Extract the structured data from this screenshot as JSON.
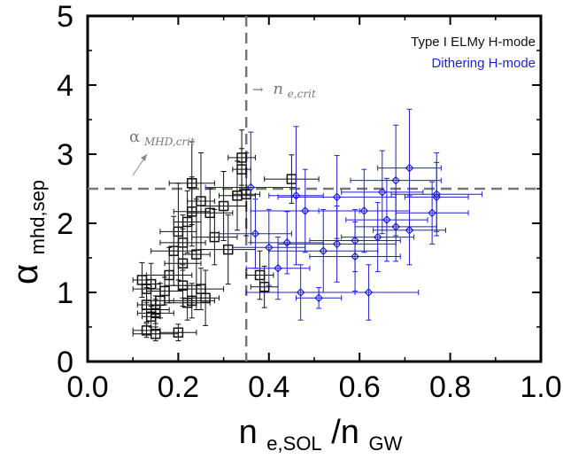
{
  "colors": {
    "type_i": "#111111",
    "dithering": "#1f1fd6",
    "threshold": "#777777",
    "annotation": "#7a7a7a"
  },
  "chart_data": {
    "type": "scatter",
    "title": "",
    "xlabel": {
      "main": "n",
      "sub1": "e,SOL",
      "slash": "/n",
      "sub2": "GW"
    },
    "ylabel": {
      "main": "α",
      "sub": "mhd,sep"
    },
    "xlim": [
      0.0,
      1.0
    ],
    "ylim": [
      0,
      5
    ],
    "x_ticks": [
      "0.0",
      "0.2",
      "0.4",
      "0.6",
      "0.8",
      "1.0"
    ],
    "y_ticks": [
      "0",
      "1",
      "2",
      "3",
      "4",
      "5"
    ],
    "grid": false,
    "legend_position": "top-right",
    "thresholds": {
      "x": 0.35,
      "y": 2.5
    },
    "annotations": {
      "ne_crit": {
        "arrow": "→",
        "main": "n",
        "sub": "e,crit"
      },
      "alpha_crit": {
        "main": "α",
        "sub": "MHD,crit"
      }
    },
    "series": [
      {
        "name": "Type I ELMy H-mode",
        "marker": "square",
        "points": [
          {
            "x": 0.12,
            "y": 1.18,
            "xerr": 0.02,
            "yerr": 0.25
          },
          {
            "x": 0.13,
            "y": 1.05,
            "xerr": 0.03,
            "yerr": 0.2
          },
          {
            "x": 0.14,
            "y": 1.12,
            "xerr": 0.02,
            "yerr": 0.3
          },
          {
            "x": 0.13,
            "y": 0.82,
            "xerr": 0.02,
            "yerr": 0.25
          },
          {
            "x": 0.15,
            "y": 0.75,
            "xerr": 0.03,
            "yerr": 0.2
          },
          {
            "x": 0.14,
            "y": 0.65,
            "xerr": 0.02,
            "yerr": 0.15
          },
          {
            "x": 0.16,
            "y": 0.88,
            "xerr": 0.03,
            "yerr": 0.25
          },
          {
            "x": 0.17,
            "y": 1.02,
            "xerr": 0.04,
            "yerr": 0.2
          },
          {
            "x": 0.15,
            "y": 0.7,
            "xerr": 0.04,
            "yerr": 0.2
          },
          {
            "x": 0.13,
            "y": 0.45,
            "xerr": 0.03,
            "yerr": 0.1
          },
          {
            "x": 0.15,
            "y": 0.4,
            "xerr": 0.05,
            "yerr": 0.1
          },
          {
            "x": 0.2,
            "y": 0.42,
            "xerr": 0.04,
            "yerr": 0.12
          },
          {
            "x": 0.18,
            "y": 1.25,
            "xerr": 0.05,
            "yerr": 0.4
          },
          {
            "x": 0.19,
            "y": 1.6,
            "xerr": 0.05,
            "yerr": 0.5
          },
          {
            "x": 0.2,
            "y": 1.88,
            "xerr": 0.04,
            "yerr": 0.7
          },
          {
            "x": 0.21,
            "y": 1.72,
            "xerr": 0.05,
            "yerr": 0.4
          },
          {
            "x": 0.22,
            "y": 2.02,
            "xerr": 0.03,
            "yerr": 0.45
          },
          {
            "x": 0.21,
            "y": 1.42,
            "xerr": 0.04,
            "yerr": 0.5
          },
          {
            "x": 0.21,
            "y": 1.1,
            "xerr": 0.04,
            "yerr": 0.3
          },
          {
            "x": 0.22,
            "y": 0.85,
            "xerr": 0.05,
            "yerr": 0.25
          },
          {
            "x": 0.23,
            "y": 0.88,
            "xerr": 0.05,
            "yerr": 0.25
          },
          {
            "x": 0.23,
            "y": 2.58,
            "xerr": 0.05,
            "yerr": 0.6
          },
          {
            "x": 0.23,
            "y": 2.17,
            "xerr": 0.04,
            "yerr": 0.5
          },
          {
            "x": 0.24,
            "y": 1.55,
            "xerr": 0.03,
            "yerr": 0.8
          },
          {
            "x": 0.25,
            "y": 2.32,
            "xerr": 0.03,
            "yerr": 0.7
          },
          {
            "x": 0.25,
            "y": 1.05,
            "xerr": 0.05,
            "yerr": 0.3
          },
          {
            "x": 0.26,
            "y": 0.92,
            "xerr": 0.03,
            "yerr": 0.4
          },
          {
            "x": 0.27,
            "y": 2.15,
            "xerr": 0.05,
            "yerr": 0.35
          },
          {
            "x": 0.28,
            "y": 1.8,
            "xerr": 0.05,
            "yerr": 0.4
          },
          {
            "x": 0.3,
            "y": 2.25,
            "xerr": 0.05,
            "yerr": 0.5
          },
          {
            "x": 0.31,
            "y": 1.62,
            "xerr": 0.06,
            "yerr": 0.5
          },
          {
            "x": 0.33,
            "y": 2.4,
            "xerr": 0.04,
            "yerr": 0.5
          },
          {
            "x": 0.34,
            "y": 2.95,
            "xerr": 0.03,
            "yerr": 0.4
          },
          {
            "x": 0.34,
            "y": 2.78,
            "xerr": 0.02,
            "yerr": 0.3
          },
          {
            "x": 0.35,
            "y": 2.42,
            "xerr": 0.03,
            "yerr": 0.6
          },
          {
            "x": 0.38,
            "y": 1.25,
            "xerr": 0.03,
            "yerr": 0.35
          },
          {
            "x": 0.39,
            "y": 1.08,
            "xerr": 0.03,
            "yerr": 0.3
          },
          {
            "x": 0.45,
            "y": 2.64,
            "xerr": 0.06,
            "yerr": 0.35
          }
        ]
      },
      {
        "name": "Dithering H-mode",
        "marker": "diamond",
        "points": [
          {
            "x": 0.36,
            "y": 2.52,
            "xerr": 0.1,
            "yerr": 0.8
          },
          {
            "x": 0.37,
            "y": 1.85,
            "xerr": 0.08,
            "yerr": 0.5
          },
          {
            "x": 0.4,
            "y": 1.65,
            "xerr": 0.08,
            "yerr": 0.55
          },
          {
            "x": 0.42,
            "y": 1.35,
            "xerr": 0.07,
            "yerr": 0.45
          },
          {
            "x": 0.44,
            "y": 1.72,
            "xerr": 0.08,
            "yerr": 0.45
          },
          {
            "x": 0.46,
            "y": 2.4,
            "xerr": 0.06,
            "yerr": 1.0
          },
          {
            "x": 0.47,
            "y": 1.0,
            "xerr": 0.12,
            "yerr": 0.4
          },
          {
            "x": 0.48,
            "y": 2.18,
            "xerr": 0.12,
            "yerr": 0.6
          },
          {
            "x": 0.51,
            "y": 0.92,
            "xerr": 0.05,
            "yerr": 0.15
          },
          {
            "x": 0.52,
            "y": 1.6,
            "xerr": 0.12,
            "yerr": 0.6
          },
          {
            "x": 0.55,
            "y": 2.38,
            "xerr": 0.13,
            "yerr": 0.6
          },
          {
            "x": 0.55,
            "y": 1.7,
            "xerr": 0.13,
            "yerr": 0.55
          },
          {
            "x": 0.59,
            "y": 1.75,
            "xerr": 0.1,
            "yerr": 0.45
          },
          {
            "x": 0.59,
            "y": 1.52,
            "xerr": 0.1,
            "yerr": 0.5
          },
          {
            "x": 0.61,
            "y": 2.18,
            "xerr": 0.1,
            "yerr": 0.6
          },
          {
            "x": 0.62,
            "y": 1.0,
            "xerr": 0.11,
            "yerr": 0.4
          },
          {
            "x": 0.64,
            "y": 1.8,
            "xerr": 0.08,
            "yerr": 0.5
          },
          {
            "x": 0.65,
            "y": 2.45,
            "xerr": 0.09,
            "yerr": 0.6
          },
          {
            "x": 0.66,
            "y": 2.05,
            "xerr": 0.09,
            "yerr": 0.6
          },
          {
            "x": 0.68,
            "y": 1.95,
            "xerr": 0.09,
            "yerr": 0.5
          },
          {
            "x": 0.68,
            "y": 2.62,
            "xerr": 0.1,
            "yerr": 0.8
          },
          {
            "x": 0.71,
            "y": 1.9,
            "xerr": 0.08,
            "yerr": 0.5
          },
          {
            "x": 0.71,
            "y": 2.8,
            "xerr": 0.07,
            "yerr": 0.85
          },
          {
            "x": 0.76,
            "y": 2.15,
            "xerr": 0.08,
            "yerr": 0.45
          },
          {
            "x": 0.77,
            "y": 2.42,
            "xerr": 0.1,
            "yerr": 0.6
          },
          {
            "x": 0.77,
            "y": 2.38,
            "xerr": 0.07,
            "yerr": 0.5
          }
        ]
      }
    ]
  }
}
